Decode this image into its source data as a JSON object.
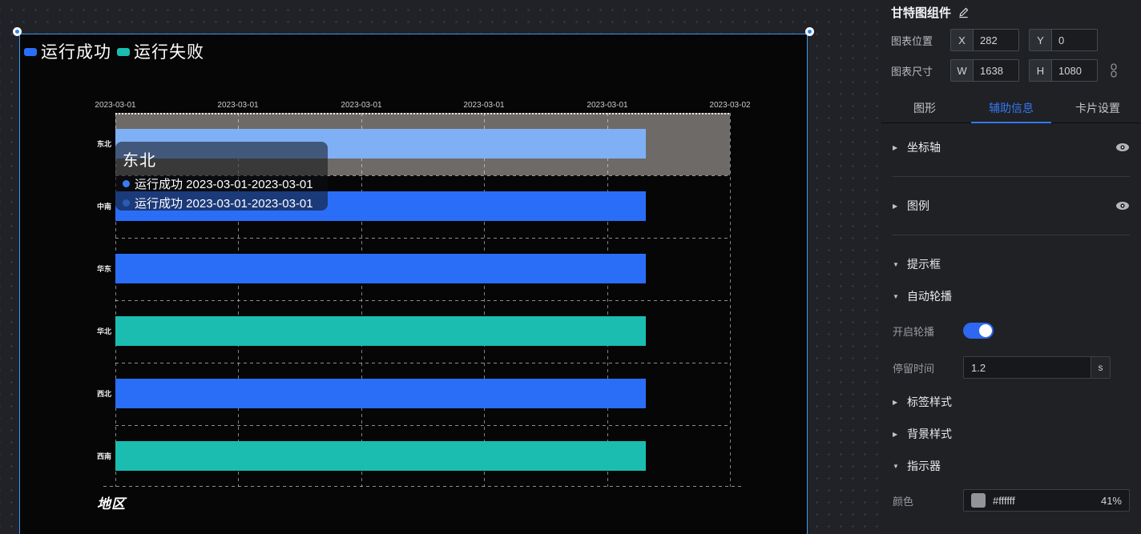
{
  "colors": {
    "bar_blue": "#2a6ef7",
    "bar_teal": "#1bbdb1",
    "bar_highlight": "#7fb0f5",
    "row_band": "#6d6a67",
    "accent": "#3478f2",
    "selection": "#3d9bee",
    "tooltip_dot": "#3a7cf0",
    "tooltip_dot2": "#2a5bb5"
  },
  "canvas": {
    "chart_data": {
      "type": "gantt-horizontal-bar",
      "title": "",
      "x_ticks": [
        "2023-03-01",
        "2023-03-01",
        "2023-03-01",
        "2023-03-01",
        "2023-03-01",
        "2023-03-02"
      ],
      "categories": [
        "东北",
        "中南",
        "华东",
        "华北",
        "西北",
        "西南"
      ],
      "bars": [
        {
          "category": "东北",
          "color": "#7fb0f5",
          "start_frac": 0,
          "end_frac": 0.863,
          "highlighted": true
        },
        {
          "category": "中南",
          "color": "#2a6ef7",
          "start_frac": 0,
          "end_frac": 0.863,
          "highlighted": false
        },
        {
          "category": "华东",
          "color": "#2a6ef7",
          "start_frac": 0,
          "end_frac": 0.863,
          "highlighted": false
        },
        {
          "category": "华北",
          "color": "#1bbdb1",
          "start_frac": 0,
          "end_frac": 0.863,
          "highlighted": false
        },
        {
          "category": "西北",
          "color": "#2a6ef7",
          "start_frac": 0,
          "end_frac": 0.863,
          "highlighted": false
        },
        {
          "category": "西南",
          "color": "#1bbdb1",
          "start_frac": 0,
          "end_frac": 0.863,
          "highlighted": false
        }
      ],
      "legend": [
        {
          "label": "运行成功",
          "color": "#2a6ef7"
        },
        {
          "label": "运行失败",
          "color": "#1bbdb1"
        }
      ],
      "category_axis_name": "地区",
      "grid": true,
      "legend_position": "top-left"
    },
    "tooltip": {
      "title": "东北",
      "rows": [
        {
          "dot_color": "#3a7cf0",
          "text": "运行成功 2023-03-01-2023-03-01"
        },
        {
          "dot_color": "#2a5bb5",
          "text": "运行成功 2023-03-01-2023-03-01"
        }
      ]
    },
    "axis_title": "地区"
  },
  "panel": {
    "title": "甘特图组件",
    "position_label": "图表位置",
    "x_label": "X",
    "x_value": "282",
    "y_label": "Y",
    "y_value": "0",
    "size_label": "图表尺寸",
    "w_label": "W",
    "w_value": "1638",
    "h_label": "H",
    "h_value": "1080",
    "tabs": [
      {
        "label": "图形",
        "active": false
      },
      {
        "label": "辅助信息",
        "active": true
      },
      {
        "label": "卡片设置",
        "active": false
      }
    ],
    "sections": [
      {
        "type": "header",
        "label": "坐标轴",
        "expanded": false,
        "eye": true
      },
      {
        "type": "divider"
      },
      {
        "type": "header",
        "label": "图例",
        "expanded": false,
        "eye": true
      },
      {
        "type": "divider"
      },
      {
        "type": "header",
        "label": "提示框",
        "expanded": true,
        "eye": false
      },
      {
        "type": "header",
        "label": "自动轮播",
        "expanded": true,
        "eye": false
      },
      {
        "type": "toggle_row",
        "label": "开启轮播",
        "on": true
      },
      {
        "type": "input_row",
        "label": "停留时间",
        "value": "1.2",
        "suffix": "s"
      },
      {
        "type": "header",
        "label": "标签样式",
        "expanded": false,
        "eye": false
      },
      {
        "type": "header",
        "label": "背景样式",
        "expanded": false,
        "eye": false
      },
      {
        "type": "header",
        "label": "指示器",
        "expanded": true,
        "eye": false
      },
      {
        "type": "color_row",
        "label": "颜色",
        "hex": "#ffffff",
        "alpha": "41%"
      }
    ]
  }
}
